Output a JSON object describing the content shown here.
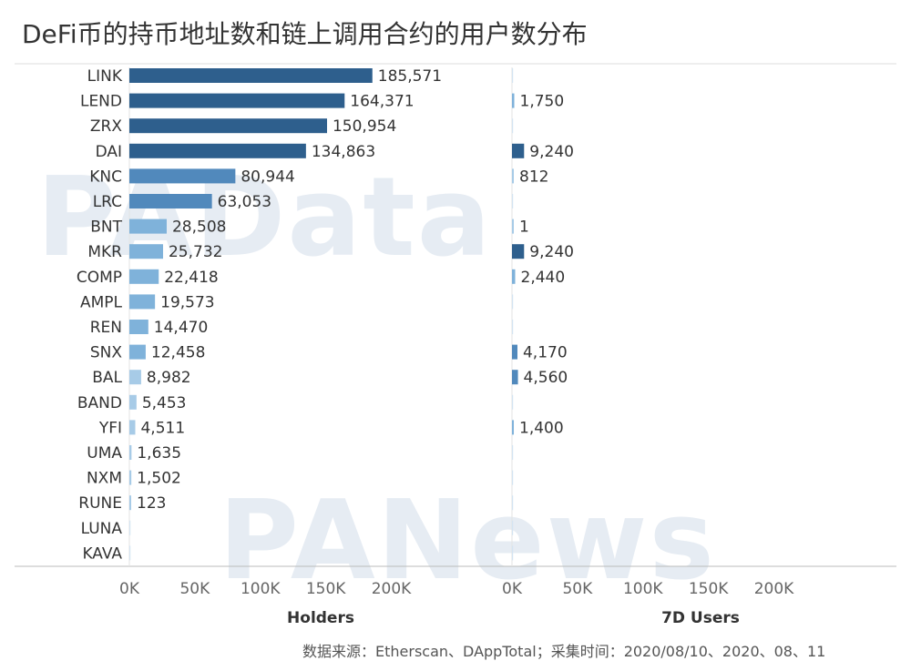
{
  "title": "DeFi币的持币地址数和链上调用合约的用户数分布",
  "source": "数据来源：Etherscan、DAppTotal；采集时间：2020/08/10、2020、08、11",
  "watermarks": [
    "PAData",
    "PANews"
  ],
  "colors": {
    "dark": "#2e5f8d",
    "mid": "#5189bc",
    "light": "#7fb2da",
    "pale": "#a7cbe7",
    "grid": "#dddddd",
    "axis": "#bbbbbb",
    "text": "#333333",
    "tick": "#666666"
  },
  "chart_data": {
    "type": "bar",
    "orientation": "horizontal",
    "categories": [
      "LINK",
      "LEND",
      "ZRX",
      "DAI",
      "KNC",
      "LRC",
      "BNT",
      "MKR",
      "COMP",
      "AMPL",
      "REN",
      "SNX",
      "BAL",
      "BAND",
      "YFI",
      "UMA",
      "NXM",
      "RUNE",
      "LUNA",
      "KAVA"
    ],
    "panels": [
      {
        "name": "Holders",
        "values": [
          185571,
          164371,
          150954,
          134863,
          80944,
          63053,
          28508,
          25732,
          22418,
          19573,
          14470,
          12458,
          8982,
          5453,
          4511,
          1635,
          1502,
          123,
          0,
          0
        ],
        "labels": [
          "185,571",
          "164,371",
          "150,954",
          "134,863",
          "80,944",
          "63,053",
          "28,508",
          "25,732",
          "22,418",
          "19,573",
          "14,470",
          "12,458",
          "8,982",
          "5,453",
          "4,511",
          "1,635",
          "1,502",
          "123",
          "",
          ""
        ],
        "xlim": [
          0,
          240000
        ],
        "ticks": [
          "0K",
          "50K",
          "100K",
          "150K",
          "200K"
        ],
        "tick_values": [
          0,
          50000,
          100000,
          150000,
          200000
        ]
      },
      {
        "name": "7D Users",
        "values": [
          0,
          1750,
          0,
          9240,
          812,
          0,
          1,
          9240,
          2440,
          0,
          0,
          4170,
          4560,
          0,
          1400,
          0,
          0,
          0,
          0,
          0
        ],
        "labels": [
          "",
          "1,750",
          "",
          "9,240",
          "812",
          "",
          "1",
          "9,240",
          "2,440",
          "",
          "",
          "4,170",
          "4,560",
          "",
          "1,400",
          "",
          "",
          "",
          "",
          ""
        ],
        "xlim": [
          0,
          240000
        ],
        "ticks": [
          "0K",
          "50K",
          "100K",
          "150K",
          "200K"
        ],
        "tick_values": [
          0,
          50000,
          100000,
          150000,
          200000
        ]
      }
    ],
    "grid": false,
    "legend": "none"
  }
}
